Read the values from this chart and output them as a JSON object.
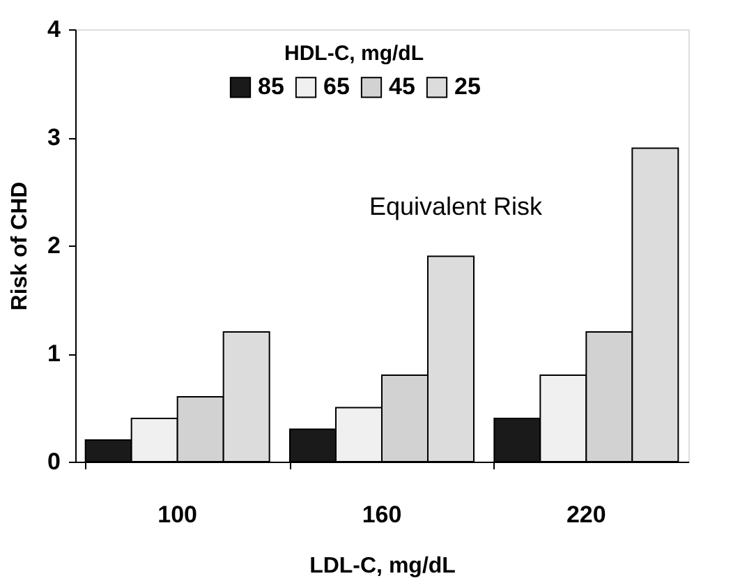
{
  "chart_data": {
    "type": "bar",
    "xlabel": "LDL-C, mg/dL",
    "ylabel": "Risk of CHD",
    "legend_title": "HDL-C, mg/dL",
    "categories": [
      "100",
      "160",
      "220"
    ],
    "series": [
      {
        "name": "85",
        "color": "#1a1a1a",
        "values": [
          0.2,
          0.3,
          0.4
        ]
      },
      {
        "name": "65",
        "color": "#f0f0f0",
        "values": [
          0.4,
          0.5,
          0.8
        ]
      },
      {
        "name": "45",
        "color": "#d2d2d2",
        "values": [
          0.6,
          0.8,
          1.2
        ]
      },
      {
        "name": "25",
        "color": "#dcdcdc",
        "values": [
          1.2,
          1.9,
          2.9
        ]
      }
    ],
    "ylim": [
      0,
      4
    ],
    "yticks": [
      0,
      1,
      2,
      3,
      4
    ],
    "grid": false,
    "legend": "top",
    "annotations": [
      "Equivalent Risk"
    ]
  }
}
